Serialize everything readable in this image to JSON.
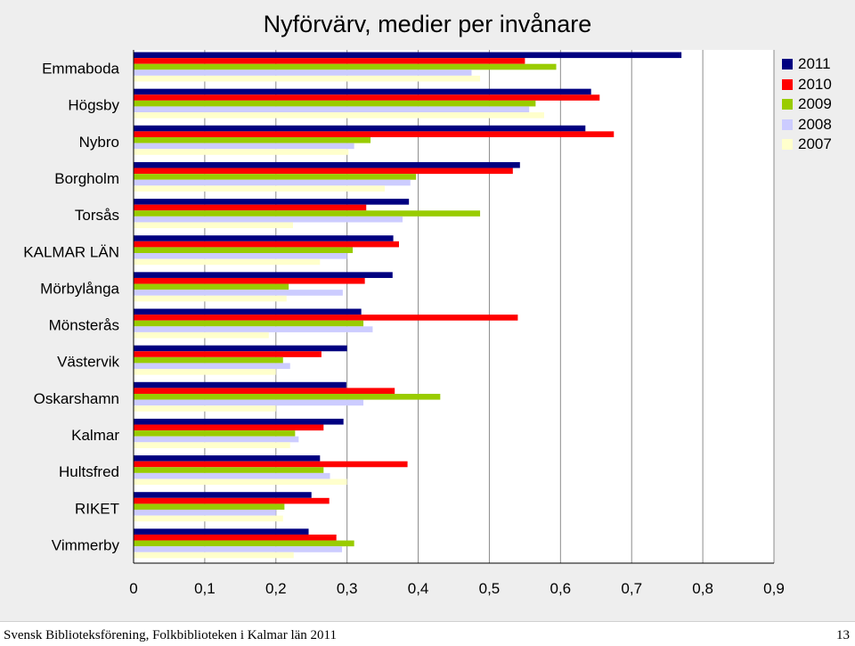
{
  "page": {
    "footer_left": "Svensk Biblioteksförening, Folkbiblioteken i Kalmar län 2011",
    "page_number": "13"
  },
  "chart_data": {
    "type": "bar",
    "orientation": "horizontal",
    "title": "Nyförvärv, medier per invånare",
    "xlabel": "",
    "ylabel": "",
    "xlim": [
      0,
      0.9
    ],
    "xticks": [
      "0",
      "0,1",
      "0,2",
      "0,3",
      "0,4",
      "0,5",
      "0,6",
      "0,7",
      "0,8",
      "0,9"
    ],
    "grid": true,
    "legend_position": "top-right",
    "categories": [
      "Emmaboda",
      "Högsby",
      "Nybro",
      "Borgholm",
      "Torsås",
      "KALMAR LÄN",
      "Mörbylånga",
      "Mönsterås",
      "Västervik",
      "Oskarshamn",
      "Kalmar",
      "Hultsfred",
      "RIKET",
      "Vimmerby"
    ],
    "series": [
      {
        "name": "2011",
        "color": "#000080",
        "values": [
          0.77,
          0.643,
          0.635,
          0.543,
          0.387,
          0.365,
          0.364,
          0.32,
          0.3,
          0.299,
          0.295,
          0.262,
          0.25,
          0.246
        ]
      },
      {
        "name": "2010",
        "color": "#ff0000",
        "values": [
          0.55,
          0.655,
          0.675,
          0.533,
          0.327,
          0.373,
          0.325,
          0.54,
          0.264,
          0.367,
          0.267,
          0.385,
          0.275,
          0.285
        ]
      },
      {
        "name": "2009",
        "color": "#99cc00",
        "values": [
          0.594,
          0.565,
          0.333,
          0.397,
          0.487,
          0.308,
          0.218,
          0.323,
          0.21,
          0.431,
          0.227,
          0.267,
          0.212,
          0.31
        ]
      },
      {
        "name": "2008",
        "color": "#ccccff",
        "values": [
          0.475,
          0.556,
          0.31,
          0.389,
          0.378,
          0.3,
          0.294,
          0.336,
          0.22,
          0.323,
          0.232,
          0.276,
          0.2,
          0.293
        ]
      },
      {
        "name": "2007",
        "color": "#ffffcc",
        "values": [
          0.487,
          0.577,
          0.302,
          0.353,
          0.224,
          0.262,
          0.215,
          0.19,
          0.2,
          0.2,
          0.22,
          0.3,
          0.21,
          0.225
        ]
      }
    ]
  }
}
